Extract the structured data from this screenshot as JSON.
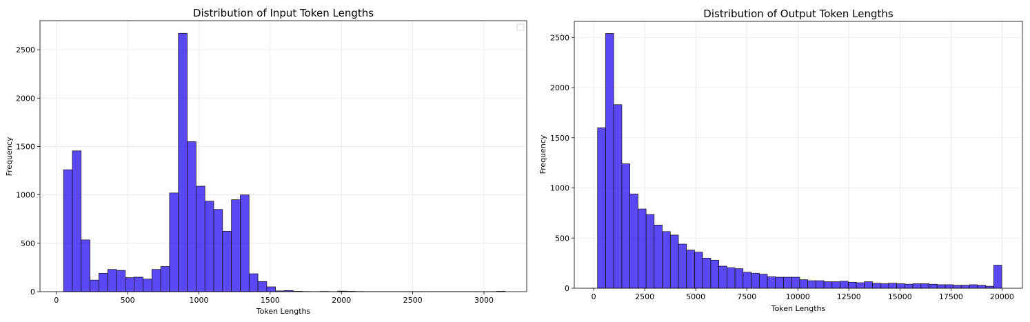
{
  "chart_data": [
    {
      "type": "bar",
      "title": "Distribution of Input Token Lengths",
      "xlabel": "Token Lengths",
      "ylabel": "Frequency",
      "xlim": [
        -115,
        3300
      ],
      "ylim": [
        0,
        2800
      ],
      "xticks": [
        0,
        500,
        1000,
        1500,
        2000,
        2500,
        3000
      ],
      "yticks": [
        0,
        500,
        1000,
        1500,
        2000,
        2500
      ],
      "grid": true,
      "legend": "empty box, top-right",
      "bin_start": 50,
      "bin_width": 62,
      "values": [
        1260,
        1455,
        535,
        120,
        190,
        230,
        220,
        145,
        150,
        130,
        230,
        260,
        1020,
        2670,
        1550,
        1090,
        935,
        850,
        625,
        950,
        1000,
        185,
        105,
        50,
        8,
        12,
        4,
        2,
        1,
        3,
        1,
        6,
        4,
        2,
        1,
        1,
        1,
        1,
        1,
        1,
        1,
        1,
        1,
        1,
        1,
        1,
        1,
        1,
        1,
        4
      ]
    },
    {
      "type": "bar",
      "title": "Distribution of Output Token Lengths",
      "xlabel": "Token Lengths",
      "ylabel": "Frequency",
      "xlim": [
        -950,
        21000
      ],
      "ylim": [
        0,
        2660
      ],
      "xticks": [
        0,
        2500,
        5000,
        7500,
        10000,
        12500,
        15000,
        17500,
        20000
      ],
      "yticks": [
        0,
        500,
        1000,
        1500,
        2000,
        2500
      ],
      "grid": true,
      "bin_start": 190,
      "bin_width": 396,
      "values": [
        1600,
        2540,
        1830,
        1240,
        940,
        790,
        735,
        630,
        565,
        530,
        440,
        380,
        360,
        300,
        280,
        220,
        205,
        195,
        160,
        150,
        140,
        115,
        110,
        110,
        110,
        85,
        75,
        75,
        65,
        65,
        70,
        60,
        55,
        65,
        50,
        45,
        50,
        45,
        40,
        45,
        45,
        40,
        35,
        35,
        30,
        30,
        35,
        30,
        20,
        230
      ]
    }
  ]
}
